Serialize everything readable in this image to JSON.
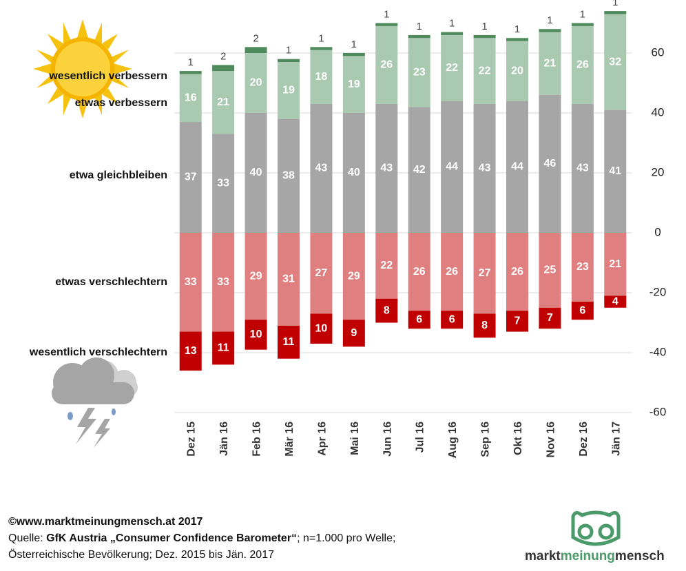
{
  "chart_data": {
    "type": "bar",
    "stacked": true,
    "categories": [
      "Dez 15",
      "Jän 16",
      "Feb 16",
      "Mär 16",
      "Apr 16",
      "Mai 16",
      "Jun 16",
      "Jul 16",
      "Aug 16",
      "Sep 16",
      "Okt 16",
      "Nov 16",
      "Dez 16",
      "Jän 17"
    ],
    "series": [
      {
        "name": "etwa gleichbleiben",
        "color": "#a6a6a6",
        "values": [
          37,
          33,
          40,
          38,
          43,
          40,
          43,
          42,
          44,
          43,
          44,
          46,
          43,
          41
        ]
      },
      {
        "name": "etwas verbessern",
        "color": "#a9c9b1",
        "values": [
          16,
          21,
          20,
          19,
          18,
          19,
          26,
          23,
          22,
          22,
          20,
          21,
          26,
          32
        ]
      },
      {
        "name": "wesentlich verbessern",
        "color": "#4f8a5d",
        "values": [
          1,
          2,
          2,
          1,
          1,
          1,
          1,
          1,
          1,
          1,
          1,
          1,
          1,
          1
        ]
      },
      {
        "name": "etwas verschlechtern",
        "color": "#e07f80",
        "values": [
          -33,
          -33,
          -29,
          -31,
          -27,
          -29,
          -22,
          -26,
          -26,
          -27,
          -26,
          -25,
          -23,
          -21
        ],
        "value_labels": [
          "33",
          "33",
          "29",
          "31",
          "27",
          "29",
          "22",
          "26",
          "26",
          "27",
          "26",
          "25",
          "23",
          "21"
        ]
      },
      {
        "name": "wesentlich verschlechtern",
        "color": "#c00000",
        "values": [
          -13,
          -11,
          -10,
          -11,
          -10,
          -9,
          -8,
          -6,
          -6,
          -8,
          -7,
          -7,
          -6,
          -4
        ],
        "value_labels": [
          "13",
          "11",
          "10",
          "11",
          "10",
          "9",
          "8",
          "6",
          "6",
          "8",
          "7",
          "7",
          "6",
          "4"
        ]
      }
    ],
    "ylim": [
      -60,
      75
    ],
    "yticks": [
      -60,
      -40,
      -20,
      0,
      20,
      40,
      60
    ],
    "grid": true,
    "y_axis_side": "right"
  },
  "footer": {
    "copyright": "©www.marktmeinungmensch.at 2017",
    "source": [
      "Quelle: ",
      "GfK Austria „Consumer Confidence Barometer“",
      "; n=1.000 pro Welle;"
    ],
    "population": "Österreichische Bevölkerung; Dez. 2015 bis Jän. 2017"
  },
  "logo": [
    "markt",
    "meinung",
    "mensch"
  ]
}
